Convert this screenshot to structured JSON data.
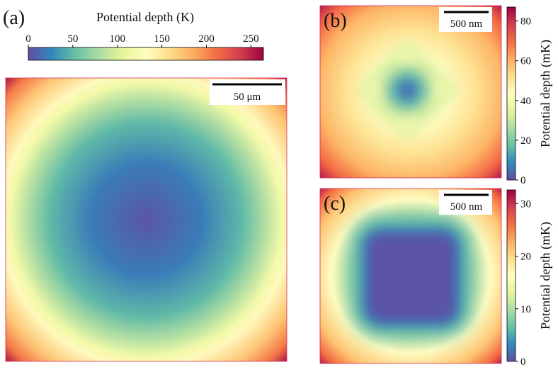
{
  "chart_data": [
    {
      "type": "heatmap",
      "panel": "(a)",
      "scale_bar": "50 μm",
      "zlabel": "Potential depth (K)",
      "zlim": [
        0,
        264
      ],
      "zticks": [
        0,
        50,
        100,
        150,
        200,
        250
      ],
      "colorbar": "top"
    },
    {
      "type": "heatmap",
      "panel": "(b)",
      "scale_bar": "500 nm",
      "zlabel": "Potential depth (mK)",
      "zlim": [
        0,
        87
      ],
      "zticks": [
        0,
        20,
        40,
        60,
        80
      ],
      "colorbar": "right"
    },
    {
      "type": "heatmap",
      "panel": "(c)",
      "scale_bar": "500 nm",
      "zlabel": "Potential depth (mK)",
      "zlim": [
        0,
        32.6
      ],
      "zticks": [
        0,
        10,
        20,
        30
      ],
      "colorbar": "right"
    }
  ]
}
